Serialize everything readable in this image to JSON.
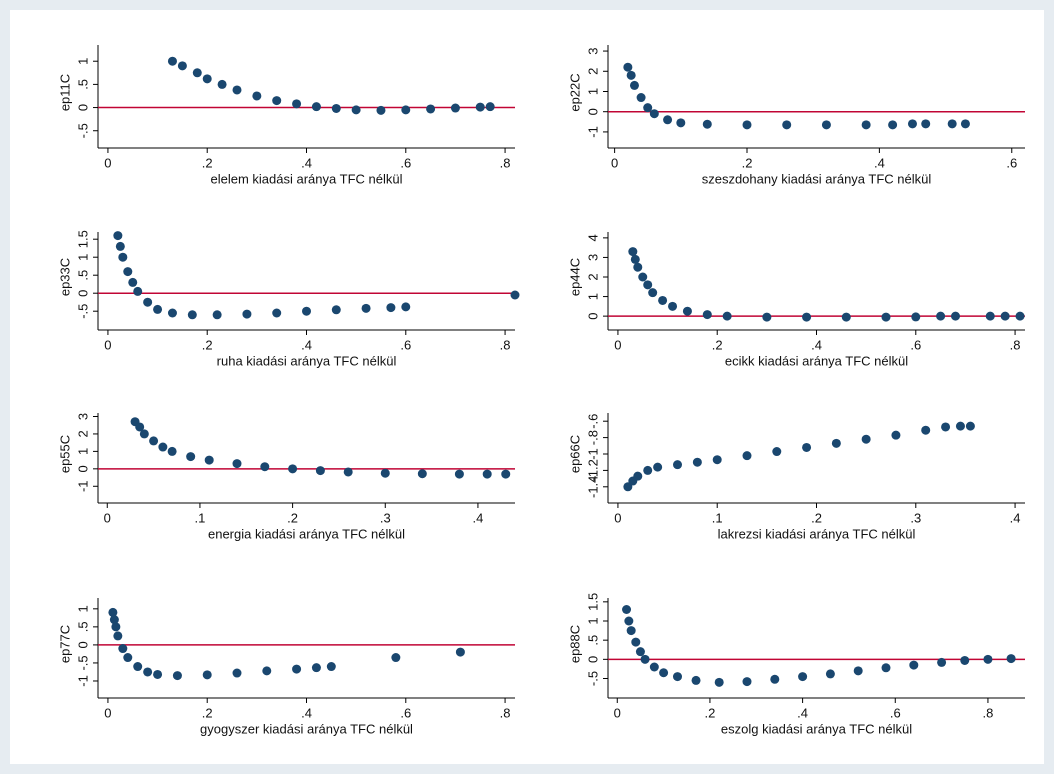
{
  "chart_data": [
    {
      "type": "scatter",
      "xlabel": "elelem kiadási aránya TFC nélkül",
      "ylabel": "ep11C",
      "color": "#1a476f",
      "hline": 0,
      "hline_color": "#c10534",
      "xlim": [
        -0.02,
        0.82
      ],
      "ylim": [
        -0.7,
        1.35
      ],
      "xticks": [
        0,
        {
          "value": 0.2,
          "label": ".2"
        },
        {
          "value": 0.4,
          "label": ".4"
        },
        {
          "value": 0.6,
          "label": ".6"
        },
        {
          "value": 0.8,
          "label": ".8"
        }
      ],
      "yticks": [
        {
          "value": -0.5,
          "label": "-.5"
        },
        0,
        {
          "value": 0.5,
          "label": ".5"
        },
        1
      ],
      "x": [
        0.13,
        0.15,
        0.18,
        0.2,
        0.23,
        0.26,
        0.3,
        0.34,
        0.38,
        0.42,
        0.46,
        0.5,
        0.55,
        0.6,
        0.65,
        0.7,
        0.75,
        0.77
      ],
      "values": [
        1.0,
        0.9,
        0.75,
        0.62,
        0.5,
        0.38,
        0.25,
        0.15,
        0.08,
        0.02,
        -0.02,
        -0.05,
        -0.06,
        -0.05,
        -0.03,
        -0.01,
        0.01,
        0.02
      ]
    },
    {
      "type": "scatter",
      "xlabel": "szeszdohany kiadási aránya TFC nélkül",
      "ylabel": "ep22C",
      "color": "#1a476f",
      "hline": 0,
      "hline_color": "#c10534",
      "xlim": [
        -0.01,
        0.62
      ],
      "ylim": [
        -1.4,
        3.3
      ],
      "xticks": [
        0,
        {
          "value": 0.2,
          "label": ".2"
        },
        {
          "value": 0.4,
          "label": ".4"
        },
        {
          "value": 0.6,
          "label": ".6"
        }
      ],
      "yticks": [
        -1,
        0,
        1,
        2,
        3
      ],
      "x": [
        0.02,
        0.025,
        0.03,
        0.04,
        0.05,
        0.06,
        0.08,
        0.1,
        0.14,
        0.2,
        0.26,
        0.32,
        0.38,
        0.42,
        0.45,
        0.47,
        0.51,
        0.53
      ],
      "values": [
        2.2,
        1.8,
        1.3,
        0.7,
        0.2,
        -0.1,
        -0.4,
        -0.55,
        -0.62,
        -0.65,
        -0.65,
        -0.65,
        -0.65,
        -0.65,
        -0.6,
        -0.6,
        -0.6,
        -0.6
      ]
    },
    {
      "type": "scatter",
      "xlabel": "ruha kiadási aránya TFC nélkül",
      "ylabel": "ep33C",
      "color": "#1a476f",
      "hline": 0,
      "hline_color": "#c10534",
      "xlim": [
        -0.02,
        0.82
      ],
      "ylim": [
        -0.8,
        1.7
      ],
      "xticks": [
        0,
        {
          "value": 0.2,
          "label": ".2"
        },
        {
          "value": 0.4,
          "label": ".4"
        },
        {
          "value": 0.6,
          "label": ".6"
        },
        {
          "value": 0.8,
          "label": ".8"
        }
      ],
      "yticks": [
        {
          "value": -0.5,
          "label": "-.5"
        },
        0,
        {
          "value": 0.5,
          "label": ".5"
        },
        1,
        {
          "value": 1.5,
          "label": "1.5"
        }
      ],
      "x": [
        0.02,
        0.025,
        0.03,
        0.04,
        0.05,
        0.06,
        0.08,
        0.1,
        0.13,
        0.17,
        0.22,
        0.28,
        0.34,
        0.4,
        0.46,
        0.52,
        0.57,
        0.6,
        0.82
      ],
      "values": [
        1.6,
        1.3,
        1.0,
        0.6,
        0.3,
        0.05,
        -0.25,
        -0.45,
        -0.55,
        -0.6,
        -0.6,
        -0.58,
        -0.55,
        -0.5,
        -0.46,
        -0.42,
        -0.4,
        -0.38,
        -0.05
      ]
    },
    {
      "type": "scatter",
      "xlabel": "ecikk kiadási aránya TFC nélkül",
      "ylabel": "ep44C",
      "color": "#1a476f",
      "hline": 0,
      "hline_color": "#c10534",
      "xlim": [
        -0.02,
        0.82
      ],
      "ylim": [
        -0.3,
        4.3
      ],
      "xticks": [
        0,
        {
          "value": 0.2,
          "label": ".2"
        },
        {
          "value": 0.4,
          "label": ".4"
        },
        {
          "value": 0.6,
          "label": ".6"
        },
        {
          "value": 0.8,
          "label": ".8"
        }
      ],
      "yticks": [
        0,
        1,
        2,
        3,
        4
      ],
      "x": [
        0.03,
        0.035,
        0.04,
        0.05,
        0.06,
        0.07,
        0.09,
        0.11,
        0.14,
        0.18,
        0.22,
        0.3,
        0.38,
        0.46,
        0.54,
        0.6,
        0.65,
        0.68,
        0.75,
        0.78,
        0.81
      ],
      "values": [
        3.3,
        2.9,
        2.5,
        2.0,
        1.6,
        1.2,
        0.8,
        0.5,
        0.25,
        0.08,
        0.0,
        -0.05,
        -0.05,
        -0.05,
        -0.05,
        -0.04,
        0.0,
        0.0,
        0.0,
        0.0,
        0.0
      ]
    },
    {
      "type": "scatter",
      "xlabel": "energia kiadási aránya TFC nélkül",
      "ylabel": "ep55C",
      "color": "#1a476f",
      "hline": 0,
      "hline_color": "#c10534",
      "xlim": [
        -0.01,
        0.44
      ],
      "ylim": [
        -1.5,
        3.2
      ],
      "xticks": [
        0,
        {
          "value": 0.1,
          "label": ".1"
        },
        {
          "value": 0.2,
          "label": ".2"
        },
        {
          "value": 0.3,
          "label": ".3"
        },
        {
          "value": 0.4,
          "label": ".4"
        }
      ],
      "yticks": [
        -1,
        0,
        1,
        2,
        3
      ],
      "x": [
        0.03,
        0.035,
        0.04,
        0.05,
        0.06,
        0.07,
        0.09,
        0.11,
        0.14,
        0.17,
        0.2,
        0.23,
        0.26,
        0.3,
        0.34,
        0.38,
        0.41,
        0.43
      ],
      "values": [
        2.7,
        2.4,
        2.0,
        1.6,
        1.25,
        1.0,
        0.7,
        0.5,
        0.3,
        0.12,
        0.0,
        -0.1,
        -0.18,
        -0.25,
        -0.28,
        -0.3,
        -0.3,
        -0.3
      ]
    },
    {
      "type": "scatter",
      "xlabel": "lakrezsi kiadási aránya TFC nélkül",
      "ylabel": "ep66C",
      "color": "#1a476f",
      "xlim": [
        -0.01,
        0.41
      ],
      "ylim": [
        -1.5,
        -0.5
      ],
      "xticks": [
        0,
        {
          "value": 0.1,
          "label": ".1"
        },
        {
          "value": 0.2,
          "label": ".2"
        },
        {
          "value": 0.3,
          "label": ".3"
        },
        {
          "value": 0.4,
          "label": ".4"
        }
      ],
      "yticks": [
        {
          "value": -1.4,
          "label": "-1.4"
        },
        {
          "value": -1.2,
          "label": "-1.2"
        },
        -1,
        {
          "value": -0.8,
          "label": "-.8"
        },
        {
          "value": -0.6,
          "label": "-.6"
        }
      ],
      "x": [
        0.01,
        0.015,
        0.02,
        0.03,
        0.04,
        0.06,
        0.08,
        0.1,
        0.13,
        0.16,
        0.19,
        0.22,
        0.25,
        0.28,
        0.31,
        0.33,
        0.345,
        0.355
      ],
      "values": [
        -1.4,
        -1.33,
        -1.27,
        -1.2,
        -1.16,
        -1.13,
        -1.1,
        -1.07,
        -1.02,
        -0.97,
        -0.92,
        -0.87,
        -0.82,
        -0.77,
        -0.71,
        -0.67,
        -0.66,
        -0.66
      ]
    },
    {
      "type": "scatter",
      "xlabel": "gyogyszer kiadási aránya TFC nélkül",
      "ylabel": "ep77C",
      "color": "#1a476f",
      "hline": 0,
      "hline_color": "#c10534",
      "xlim": [
        -0.02,
        0.82
      ],
      "ylim": [
        -1.25,
        1.3
      ],
      "xticks": [
        0,
        {
          "value": 0.2,
          "label": ".2"
        },
        {
          "value": 0.4,
          "label": ".4"
        },
        {
          "value": 0.6,
          "label": ".6"
        },
        {
          "value": 0.8,
          "label": ".8"
        }
      ],
      "yticks": [
        -1,
        {
          "value": -0.5,
          "label": "-.5"
        },
        0,
        {
          "value": 0.5,
          "label": ".5"
        },
        1
      ],
      "x": [
        0.01,
        0.013,
        0.016,
        0.02,
        0.03,
        0.04,
        0.06,
        0.08,
        0.1,
        0.14,
        0.2,
        0.26,
        0.32,
        0.38,
        0.42,
        0.45,
        0.58,
        0.71
      ],
      "values": [
        0.9,
        0.7,
        0.5,
        0.25,
        -0.1,
        -0.35,
        -0.6,
        -0.75,
        -0.82,
        -0.85,
        -0.83,
        -0.78,
        -0.72,
        -0.67,
        -0.63,
        -0.6,
        -0.35,
        -0.2
      ]
    },
    {
      "type": "scatter",
      "xlabel": "eszolg kiadási aránya TFC nélkül",
      "ylabel": "ep88C",
      "color": "#1a476f",
      "hline": 0,
      "hline_color": "#c10534",
      "xlim": [
        -0.02,
        0.88
      ],
      "ylim": [
        -0.8,
        1.6
      ],
      "xticks": [
        0,
        {
          "value": 0.2,
          "label": ".2"
        },
        {
          "value": 0.4,
          "label": ".4"
        },
        {
          "value": 0.6,
          "label": ".6"
        },
        {
          "value": 0.8,
          "label": ".8"
        }
      ],
      "yticks": [
        {
          "value": -0.5,
          "label": "-.5"
        },
        0,
        {
          "value": 0.5,
          "label": ".5"
        },
        1,
        {
          "value": 1.5,
          "label": "1.5"
        }
      ],
      "x": [
        0.02,
        0.025,
        0.03,
        0.04,
        0.05,
        0.06,
        0.08,
        0.1,
        0.13,
        0.17,
        0.22,
        0.28,
        0.34,
        0.4,
        0.46,
        0.52,
        0.58,
        0.64,
        0.7,
        0.75,
        0.8,
        0.85
      ],
      "values": [
        1.3,
        1.0,
        0.75,
        0.45,
        0.2,
        0.0,
        -0.2,
        -0.35,
        -0.45,
        -0.55,
        -0.6,
        -0.58,
        -0.52,
        -0.45,
        -0.38,
        -0.3,
        -0.22,
        -0.15,
        -0.08,
        -0.03,
        0.0,
        0.02
      ]
    }
  ]
}
